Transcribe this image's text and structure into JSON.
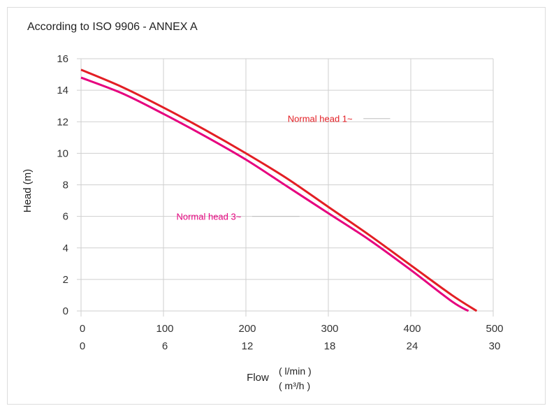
{
  "chart_data": {
    "type": "line",
    "title": "According to ISO 9906 - ANNEX A",
    "xlabel": "Flow",
    "xunits": [
      "( l/min )",
      "( m³/h )"
    ],
    "ylabel": "Head (m)",
    "x_ticks": [
      0,
      100,
      200,
      300,
      400,
      500
    ],
    "x_ticks_secondary": [
      0,
      6,
      12,
      18,
      24,
      30
    ],
    "y_ticks": [
      0,
      2,
      4,
      6,
      8,
      10,
      12,
      14,
      16
    ],
    "xlim": [
      0,
      500
    ],
    "ylim": [
      0,
      16
    ],
    "grid": true,
    "series": [
      {
        "name": "Normal head 1~",
        "color": "#e31e24",
        "x": [
          0,
          50,
          100,
          150,
          200,
          250,
          300,
          350,
          400,
          450,
          480
        ],
        "y": [
          15.3,
          14.2,
          12.9,
          11.5,
          10.0,
          8.4,
          6.6,
          4.8,
          2.9,
          1.0,
          0
        ]
      },
      {
        "name": "Normal head 3~",
        "color": "#e6007e",
        "x": [
          0,
          50,
          100,
          150,
          200,
          250,
          300,
          350,
          400,
          450,
          470
        ],
        "y": [
          14.8,
          13.8,
          12.5,
          11.1,
          9.6,
          7.9,
          6.2,
          4.5,
          2.6,
          0.6,
          0
        ]
      }
    ],
    "annotations": [
      {
        "text": "Normal head 1~",
        "series": 0,
        "at_x": 290,
        "at_y": 12.2,
        "line_to_x": 375
      },
      {
        "text": "Normal head 3~",
        "series": 1,
        "at_x": 155,
        "at_y": 6.0,
        "line_to_x": 265
      }
    ]
  }
}
